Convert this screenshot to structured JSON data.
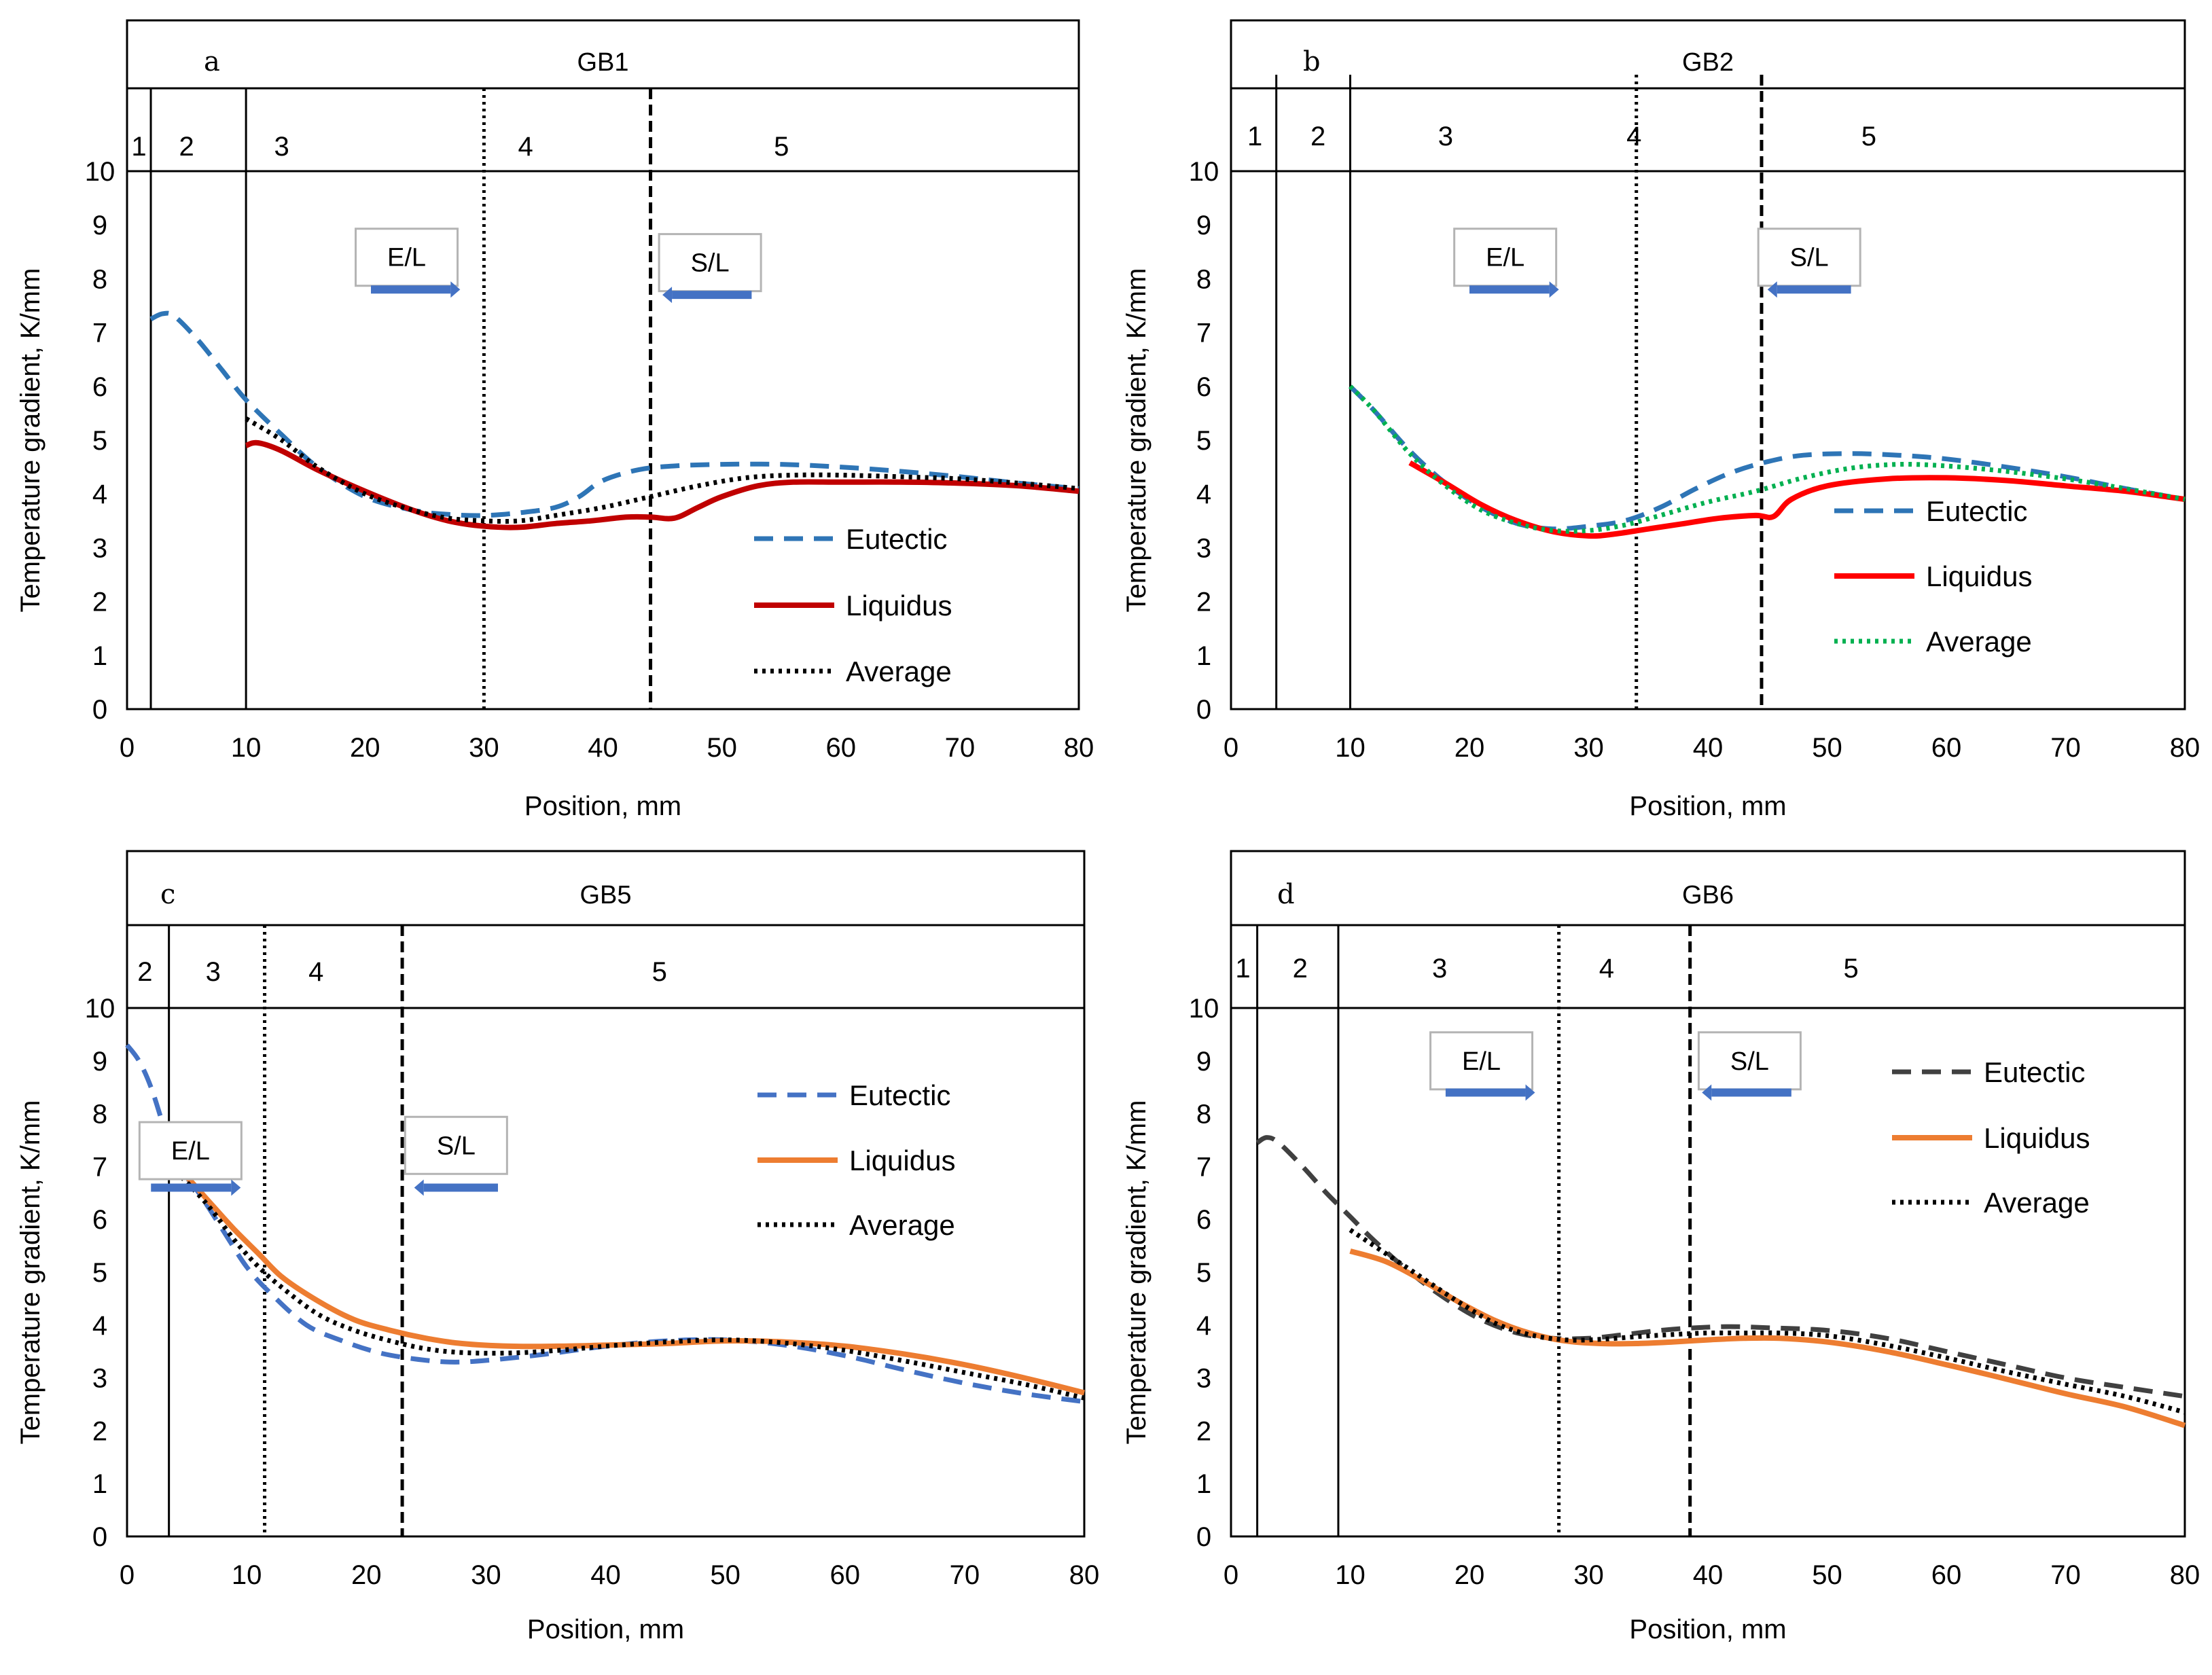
{
  "chart_data": [
    {
      "panel": "a",
      "title": "GB1",
      "type": "line",
      "xlabel": "Position, mm",
      "ylabel": "Temperature gradient, K/mm",
      "xlim": [
        0,
        80
      ],
      "ylim": [
        0,
        10
      ],
      "xticks": [
        "0",
        "10",
        "20",
        "30",
        "40",
        "50",
        "60",
        "70",
        "80"
      ],
      "yticks": [
        "0",
        "1",
        "2",
        "3",
        "4",
        "5",
        "6",
        "7",
        "8",
        "9",
        "10"
      ],
      "zone_boundaries": [
        {
          "x": 2,
          "style": "solid"
        },
        {
          "x": 10,
          "style": "solid"
        },
        {
          "x": 30,
          "style": "dotted"
        },
        {
          "x": 44,
          "style": "dashed"
        }
      ],
      "zones": [
        {
          "label": "1",
          "x": 1
        },
        {
          "label": "2",
          "x": 5
        },
        {
          "label": "3",
          "x": 13
        },
        {
          "label": "4",
          "x": 33.5
        },
        {
          "label": "5",
          "x": 55
        }
      ],
      "annotations": [
        {
          "text": "E/L",
          "x": 23.5,
          "y": 8.4,
          "arrow_from": 20.5,
          "arrow_to": 28,
          "arrow_y": 7.8
        },
        {
          "text": "S/L",
          "x": 49,
          "y": 8.3,
          "arrow_from": 52.5,
          "arrow_to": 45,
          "arrow_y": 7.7
        }
      ],
      "legend": "center-right",
      "series": [
        {
          "name": "Eutectic",
          "color": "#2e75b6",
          "style": "dashed",
          "x": [
            2,
            3,
            4,
            6,
            8,
            10,
            13,
            16,
            20,
            24,
            27,
            30,
            33,
            36,
            38,
            40,
            43,
            46,
            50,
            55,
            60,
            65,
            70,
            75,
            80
          ],
          "y": [
            7.25,
            7.35,
            7.3,
            6.85,
            6.3,
            5.75,
            5.1,
            4.5,
            3.95,
            3.7,
            3.62,
            3.6,
            3.65,
            3.75,
            3.95,
            4.25,
            4.45,
            4.52,
            4.55,
            4.55,
            4.5,
            4.42,
            4.32,
            4.2,
            4.1
          ]
        },
        {
          "name": "Liquidus",
          "color": "#c00000",
          "style": "solid",
          "x": [
            10,
            11,
            13,
            16,
            20,
            24,
            27,
            30,
            33,
            36,
            39,
            42,
            44,
            46,
            48,
            50,
            53,
            56,
            60,
            65,
            70,
            75,
            80
          ],
          "y": [
            4.9,
            4.95,
            4.8,
            4.45,
            4.05,
            3.7,
            3.5,
            3.4,
            3.38,
            3.45,
            3.5,
            3.57,
            3.57,
            3.55,
            3.75,
            3.95,
            4.15,
            4.22,
            4.22,
            4.22,
            4.2,
            4.15,
            4.05
          ]
        },
        {
          "name": "Average",
          "color": "#000000",
          "style": "dotted",
          "x": [
            10,
            13,
            16,
            20,
            24,
            27,
            30,
            33,
            36,
            40,
            44,
            48,
            52,
            56,
            60,
            65,
            70,
            75,
            80
          ],
          "y": [
            5.4,
            5.0,
            4.5,
            4.0,
            3.7,
            3.55,
            3.5,
            3.5,
            3.6,
            3.75,
            3.95,
            4.15,
            4.3,
            4.35,
            4.35,
            4.32,
            4.28,
            4.2,
            4.1
          ]
        }
      ]
    },
    {
      "panel": "b",
      "title": "GB2",
      "type": "line",
      "xlabel": "Position, mm",
      "ylabel": "Temperature gradient, K/mm",
      "xlim": [
        0,
        80
      ],
      "ylim": [
        0,
        10
      ],
      "xticks": [
        "0",
        "10",
        "20",
        "30",
        "40",
        "50",
        "60",
        "70",
        "80"
      ],
      "yticks": [
        "0",
        "1",
        "2",
        "3",
        "4",
        "5",
        "6",
        "7",
        "8",
        "9",
        "10"
      ],
      "zone_boundaries": [
        {
          "x": 3.8,
          "style": "solid"
        },
        {
          "x": 10,
          "style": "solid"
        },
        {
          "x": 34,
          "style": "dotted"
        },
        {
          "x": 44.5,
          "style": "dashed"
        }
      ],
      "zones": [
        {
          "label": "1",
          "x": 2
        },
        {
          "label": "2",
          "x": 7.3
        },
        {
          "label": "3",
          "x": 18
        },
        {
          "label": "4",
          "x": 33.8
        },
        {
          "label": "5",
          "x": 53.5
        }
      ],
      "annotations": [
        {
          "text": "E/L",
          "x": 23,
          "y": 8.4,
          "arrow_from": 20,
          "arrow_to": 27.5,
          "arrow_y": 7.8
        },
        {
          "text": "S/L",
          "x": 48.5,
          "y": 8.4,
          "arrow_from": 52,
          "arrow_to": 45,
          "arrow_y": 7.8
        }
      ],
      "legend": "center-right",
      "series": [
        {
          "name": "Eutectic",
          "color": "#2e75b6",
          "style": "dashed",
          "x": [
            10,
            12,
            15,
            18,
            21,
            24,
            27,
            30,
            33,
            36,
            39,
            42,
            45,
            48,
            52,
            56,
            60,
            65,
            70,
            75,
            80
          ],
          "y": [
            6.0,
            5.55,
            4.8,
            4.2,
            3.75,
            3.45,
            3.35,
            3.4,
            3.5,
            3.75,
            4.1,
            4.4,
            4.6,
            4.72,
            4.75,
            4.72,
            4.65,
            4.5,
            4.32,
            4.1,
            3.9
          ]
        },
        {
          "name": "Liquidus",
          "color": "#ff0000",
          "style": "solid",
          "x": [
            15,
            18,
            21,
            24,
            27,
            30,
            32,
            35,
            38,
            41,
            44,
            45.5,
            47,
            50,
            55,
            60,
            65,
            70,
            75,
            80
          ],
          "y": [
            4.58,
            4.2,
            3.8,
            3.5,
            3.3,
            3.22,
            3.25,
            3.35,
            3.45,
            3.55,
            3.6,
            3.58,
            3.9,
            4.15,
            4.28,
            4.3,
            4.25,
            4.15,
            4.05,
            3.9
          ]
        },
        {
          "name": "Average",
          "color": "#00b050",
          "style": "dotted",
          "x": [
            10,
            12,
            15,
            18,
            21,
            24,
            27,
            30,
            33,
            36,
            40,
            44,
            48,
            52,
            56,
            60,
            65,
            70,
            75,
            80
          ],
          "y": [
            6.0,
            5.55,
            4.75,
            4.15,
            3.7,
            3.45,
            3.32,
            3.32,
            3.42,
            3.6,
            3.85,
            4.05,
            4.3,
            4.48,
            4.55,
            4.52,
            4.42,
            4.28,
            4.1,
            3.9
          ]
        }
      ]
    },
    {
      "panel": "c",
      "title": "GB5",
      "type": "line",
      "xlabel": "Position, mm",
      "ylabel": "Temperature gradient, K/mm",
      "xlim": [
        0,
        80
      ],
      "ylim": [
        0,
        10
      ],
      "xticks": [
        "0",
        "10",
        "20",
        "30",
        "40",
        "50",
        "60",
        "70",
        "80"
      ],
      "yticks": [
        "0",
        "1",
        "2",
        "3",
        "4",
        "5",
        "6",
        "7",
        "8",
        "9",
        "10"
      ],
      "zone_boundaries": [
        {
          "x": 3.5,
          "style": "solid"
        },
        {
          "x": 11.5,
          "style": "dotted"
        },
        {
          "x": 23,
          "style": "dashed"
        }
      ],
      "zones": [
        {
          "label": "2",
          "x": 1.5
        },
        {
          "label": "3",
          "x": 7.2
        },
        {
          "label": "4",
          "x": 15.8
        },
        {
          "label": "5",
          "x": 44.5
        }
      ],
      "annotations": [
        {
          "text": "E/L",
          "x": 5.3,
          "y": 7.3,
          "arrow_from": 2,
          "arrow_to": 9.5,
          "arrow_y": 6.6
        },
        {
          "text": "S/L",
          "x": 27.5,
          "y": 7.4,
          "arrow_from": 31,
          "arrow_to": 24,
          "arrow_y": 6.6
        }
      ],
      "legend": "top-right",
      "series": [
        {
          "name": "Eutectic",
          "color": "#4472c4",
          "style": "dashed",
          "x": [
            0,
            1,
            2,
            3,
            4,
            6,
            8,
            10,
            12,
            15,
            18,
            21,
            24,
            27,
            30,
            35,
            40,
            45,
            50,
            55,
            60,
            65,
            70,
            75,
            80
          ],
          "y": [
            9.3,
            9.0,
            8.5,
            7.8,
            7.1,
            6.5,
            5.8,
            5.1,
            4.6,
            4.0,
            3.7,
            3.48,
            3.36,
            3.3,
            3.33,
            3.45,
            3.6,
            3.7,
            3.72,
            3.62,
            3.42,
            3.15,
            2.9,
            2.7,
            2.55
          ]
        },
        {
          "name": "Liquidus",
          "color": "#ed7d31",
          "style": "solid",
          "x": [
            3.5,
            5,
            7,
            9,
            11,
            13,
            16,
            19,
            22,
            25,
            28,
            32,
            36,
            40,
            45,
            50,
            55,
            60,
            65,
            70,
            75,
            80
          ],
          "y": [
            7.1,
            6.8,
            6.3,
            5.8,
            5.35,
            4.9,
            4.45,
            4.1,
            3.9,
            3.75,
            3.65,
            3.6,
            3.6,
            3.62,
            3.65,
            3.7,
            3.68,
            3.6,
            3.45,
            3.25,
            3.0,
            2.72
          ]
        },
        {
          "name": "Average",
          "color": "#000000",
          "style": "dotted",
          "x": [
            3.5,
            5,
            7,
            9,
            11,
            13,
            16,
            19,
            22,
            25,
            28,
            32,
            36,
            40,
            45,
            50,
            55,
            60,
            65,
            70,
            75,
            80
          ],
          "y": [
            7.0,
            6.7,
            6.2,
            5.6,
            5.1,
            4.7,
            4.2,
            3.9,
            3.7,
            3.55,
            3.48,
            3.47,
            3.52,
            3.6,
            3.68,
            3.72,
            3.66,
            3.52,
            3.32,
            3.1,
            2.88,
            2.62
          ]
        }
      ]
    },
    {
      "panel": "d",
      "title": "GB6",
      "type": "line",
      "xlabel": "Position, mm",
      "ylabel": "Temperature gradient, K/mm",
      "xlim": [
        0,
        80
      ],
      "ylim": [
        0,
        10
      ],
      "xticks": [
        "0",
        "10",
        "20",
        "30",
        "40",
        "50",
        "60",
        "70",
        "80"
      ],
      "yticks": [
        "0",
        "1",
        "2",
        "3",
        "4",
        "5",
        "6",
        "7",
        "8",
        "9",
        "10"
      ],
      "zone_boundaries": [
        {
          "x": 2.2,
          "style": "solid"
        },
        {
          "x": 9,
          "style": "solid"
        },
        {
          "x": 27.5,
          "style": "dotted"
        },
        {
          "x": 38.5,
          "style": "dashed"
        }
      ],
      "zones": [
        {
          "label": "1",
          "x": 1
        },
        {
          "label": "2",
          "x": 5.8
        },
        {
          "label": "3",
          "x": 17.5
        },
        {
          "label": "4",
          "x": 31.5
        },
        {
          "label": "5",
          "x": 52
        }
      ],
      "annotations": [
        {
          "text": "E/L",
          "x": 21,
          "y": 9.0,
          "arrow_from": 18,
          "arrow_to": 25.5,
          "arrow_y": 8.4
        },
        {
          "text": "S/L",
          "x": 43.5,
          "y": 9.0,
          "arrow_from": 47,
          "arrow_to": 39.5,
          "arrow_y": 8.4
        }
      ],
      "legend": "top-right",
      "series": [
        {
          "name": "Eutectic",
          "color": "#404040",
          "style": "dashed",
          "x": [
            2.2,
            3,
            4,
            6,
            8,
            10,
            12,
            15,
            18,
            21,
            24,
            27,
            30,
            33,
            36,
            39,
            42,
            45,
            50,
            55,
            60,
            65,
            70,
            75,
            80
          ],
          "y": [
            7.45,
            7.55,
            7.45,
            7.0,
            6.5,
            6.05,
            5.6,
            5.0,
            4.5,
            4.1,
            3.85,
            3.75,
            3.75,
            3.82,
            3.9,
            3.95,
            3.97,
            3.95,
            3.9,
            3.75,
            3.5,
            3.25,
            3.0,
            2.82,
            2.65
          ]
        },
        {
          "name": "Liquidus",
          "color": "#ed7d31",
          "style": "solid",
          "x": [
            10,
            13,
            16,
            19,
            22,
            25,
            28,
            31,
            34,
            37,
            40,
            43,
            46,
            50,
            55,
            60,
            65,
            70,
            75,
            80
          ],
          "y": [
            5.4,
            5.2,
            4.85,
            4.45,
            4.1,
            3.85,
            3.7,
            3.65,
            3.65,
            3.68,
            3.72,
            3.75,
            3.75,
            3.68,
            3.5,
            3.25,
            2.98,
            2.7,
            2.45,
            2.1
          ]
        },
        {
          "name": "Average",
          "color": "#000000",
          "style": "dotted",
          "x": [
            10,
            13,
            16,
            19,
            22,
            25,
            28,
            31,
            34,
            37,
            40,
            43,
            46,
            50,
            55,
            60,
            65,
            70,
            75,
            80
          ],
          "y": [
            5.8,
            5.35,
            4.9,
            4.45,
            4.05,
            3.82,
            3.72,
            3.73,
            3.78,
            3.82,
            3.85,
            3.85,
            3.85,
            3.8,
            3.62,
            3.38,
            3.12,
            2.88,
            2.65,
            2.35
          ]
        }
      ]
    }
  ]
}
